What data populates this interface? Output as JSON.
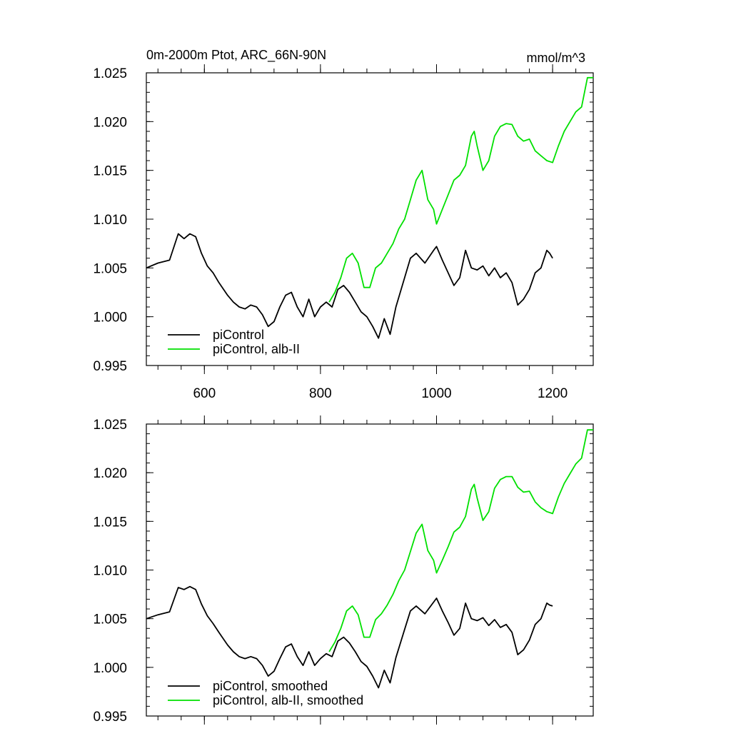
{
  "figure": {
    "title_left": "0m-2000m Ptot, ARC_66N-90N",
    "title_right": "mmol/m^3"
  },
  "chart_data": [
    {
      "type": "line",
      "panel": "top",
      "title": "0m-2000m Ptot, ARC_66N-90N",
      "units": "mmol/m^3",
      "xlim": [
        500,
        1270
      ],
      "ylim": [
        0.995,
        1.025
      ],
      "xticks": [
        600,
        800,
        1000,
        1200
      ],
      "xtick_labels": [
        "600",
        "800",
        "1000",
        "1200"
      ],
      "yticks": [
        0.995,
        1.0,
        1.005,
        1.01,
        1.015,
        1.02,
        1.025
      ],
      "ytick_labels": [
        "0.995",
        "1.000",
        "1.005",
        "1.010",
        "1.015",
        "1.020",
        "1.025"
      ],
      "legend_position": "bottom-left",
      "series": [
        {
          "name": "piControl",
          "color": "#000000",
          "x": [
            500,
            520,
            540,
            555,
            565,
            575,
            585,
            595,
            605,
            615,
            625,
            640,
            650,
            660,
            670,
            680,
            690,
            700,
            710,
            720,
            730,
            740,
            750,
            760,
            770,
            780,
            790,
            800,
            810,
            820,
            830,
            840,
            850,
            860,
            870,
            880,
            890,
            900,
            910,
            920,
            930,
            945,
            955,
            965,
            980,
            995,
            1000,
            1010,
            1020,
            1030,
            1040,
            1050,
            1060,
            1070,
            1080,
            1090,
            1100,
            1110,
            1120,
            1130,
            1140,
            1150,
            1160,
            1170,
            1180,
            1190,
            1195,
            1200
          ],
          "y": [
            1.005,
            1.0055,
            1.0058,
            1.0085,
            1.008,
            1.0085,
            1.0082,
            1.0065,
            1.0052,
            1.0045,
            1.0035,
            1.0022,
            1.0015,
            1.001,
            1.0008,
            1.0012,
            1.001,
            1.0002,
            0.999,
            0.9995,
            1.001,
            1.0022,
            1.0025,
            1.001,
            1.0,
            1.0018,
            1.0,
            1.001,
            1.0015,
            1.001,
            1.0028,
            1.0032,
            1.0025,
            1.0015,
            1.0005,
            1.0,
            0.999,
            0.9978,
            0.9998,
            0.9982,
            1.001,
            1.004,
            1.006,
            1.0065,
            1.0055,
            1.0068,
            1.0072,
            1.0058,
            1.0045,
            1.0032,
            1.004,
            1.0068,
            1.005,
            1.0048,
            1.0052,
            1.0042,
            1.005,
            1.004,
            1.0045,
            1.0035,
            1.0012,
            1.0018,
            1.0028,
            1.0045,
            1.005,
            1.0068,
            1.0065,
            1.006
          ]
        },
        {
          "name": "piControl, alb-II",
          "color": "#00e000",
          "x": [
            815,
            825,
            835,
            845,
            855,
            865,
            875,
            885,
            895,
            905,
            915,
            925,
            935,
            945,
            955,
            965,
            975,
            985,
            995,
            1000,
            1010,
            1020,
            1030,
            1040,
            1050,
            1060,
            1065,
            1070,
            1080,
            1090,
            1100,
            1110,
            1120,
            1130,
            1140,
            1150,
            1160,
            1170,
            1180,
            1190,
            1200,
            1210,
            1220,
            1230,
            1240,
            1250,
            1260,
            1270
          ],
          "y": [
            1.0015,
            1.0025,
            1.004,
            1.006,
            1.0065,
            1.0055,
            1.003,
            1.003,
            1.005,
            1.0055,
            1.0065,
            1.0075,
            1.009,
            1.01,
            1.012,
            1.014,
            1.015,
            1.012,
            1.011,
            1.0095,
            1.011,
            1.0125,
            1.014,
            1.0145,
            1.0155,
            1.0185,
            1.019,
            1.0175,
            1.015,
            1.016,
            1.0185,
            1.0195,
            1.0198,
            1.0197,
            1.0185,
            1.018,
            1.0182,
            1.017,
            1.0165,
            1.016,
            1.0158,
            1.0175,
            1.019,
            1.02,
            1.021,
            1.0215,
            1.0245,
            1.0245
          ]
        }
      ]
    },
    {
      "type": "line",
      "panel": "bottom",
      "title": "",
      "xlim": [
        500,
        1270
      ],
      "ylim": [
        0.995,
        1.025
      ],
      "xticks": [
        600,
        800,
        1000,
        1200
      ],
      "xtick_labels": [],
      "yticks": [
        0.995,
        1.0,
        1.005,
        1.01,
        1.015,
        1.02,
        1.025
      ],
      "ytick_labels": [
        "0.995",
        "1.000",
        "1.005",
        "1.010",
        "1.015",
        "1.020",
        "1.025"
      ],
      "legend_position": "bottom-left",
      "series": [
        {
          "name": "piControl, smoothed",
          "color": "#000000",
          "x": [
            500,
            520,
            540,
            555,
            565,
            575,
            585,
            595,
            605,
            615,
            625,
            640,
            650,
            660,
            670,
            680,
            690,
            700,
            710,
            720,
            730,
            740,
            750,
            760,
            770,
            780,
            790,
            800,
            810,
            820,
            830,
            840,
            850,
            860,
            870,
            880,
            890,
            900,
            910,
            920,
            930,
            945,
            955,
            965,
            980,
            995,
            1000,
            1010,
            1020,
            1030,
            1040,
            1050,
            1060,
            1070,
            1080,
            1090,
            1100,
            1110,
            1120,
            1130,
            1140,
            1150,
            1160,
            1170,
            1180,
            1190,
            1195,
            1200
          ],
          "y": [
            1.005,
            1.0054,
            1.0057,
            1.0082,
            1.008,
            1.0083,
            1.008,
            1.0065,
            1.0053,
            1.0045,
            1.0036,
            1.0023,
            1.0016,
            1.0011,
            1.0009,
            1.0011,
            1.0009,
            1.0002,
            0.9991,
            0.9996,
            1.0009,
            1.0021,
            1.0024,
            1.0011,
            1.0002,
            1.0016,
            1.0002,
            1.0009,
            1.0014,
            1.0011,
            1.0027,
            1.0031,
            1.0025,
            1.0016,
            1.0006,
            1.0001,
            0.9991,
            0.9979,
            0.9997,
            0.9984,
            1.001,
            1.0039,
            1.0058,
            1.0063,
            1.0055,
            1.0067,
            1.0071,
            1.0058,
            1.0046,
            1.0033,
            1.004,
            1.0066,
            1.005,
            1.0048,
            1.0051,
            1.0043,
            1.0049,
            1.0041,
            1.0044,
            1.0036,
            1.0013,
            1.0018,
            1.0028,
            1.0044,
            1.005,
            1.0066,
            1.0064,
            1.0063
          ]
        },
        {
          "name": "piControl, alb-II, smoothed",
          "color": "#00e000",
          "x": [
            815,
            825,
            835,
            845,
            855,
            865,
            875,
            885,
            895,
            905,
            915,
            925,
            935,
            945,
            955,
            965,
            975,
            985,
            995,
            1000,
            1010,
            1020,
            1030,
            1040,
            1050,
            1060,
            1065,
            1070,
            1080,
            1090,
            1100,
            1110,
            1120,
            1130,
            1140,
            1150,
            1160,
            1170,
            1180,
            1190,
            1200,
            1210,
            1220,
            1230,
            1240,
            1250,
            1260,
            1270
          ],
          "y": [
            1.0016,
            1.0026,
            1.004,
            1.0058,
            1.0063,
            1.0054,
            1.0031,
            1.0031,
            1.0049,
            1.0055,
            1.0064,
            1.0075,
            1.0089,
            1.01,
            1.0119,
            1.0138,
            1.0147,
            1.012,
            1.011,
            1.0097,
            1.011,
            1.0124,
            1.0139,
            1.0144,
            1.0155,
            1.0183,
            1.0188,
            1.0174,
            1.0151,
            1.016,
            1.0184,
            1.0193,
            1.0196,
            1.0196,
            1.0185,
            1.018,
            1.0181,
            1.017,
            1.0164,
            1.016,
            1.0158,
            1.0175,
            1.0189,
            1.0199,
            1.0209,
            1.0215,
            1.0244,
            1.0244
          ]
        }
      ]
    }
  ]
}
